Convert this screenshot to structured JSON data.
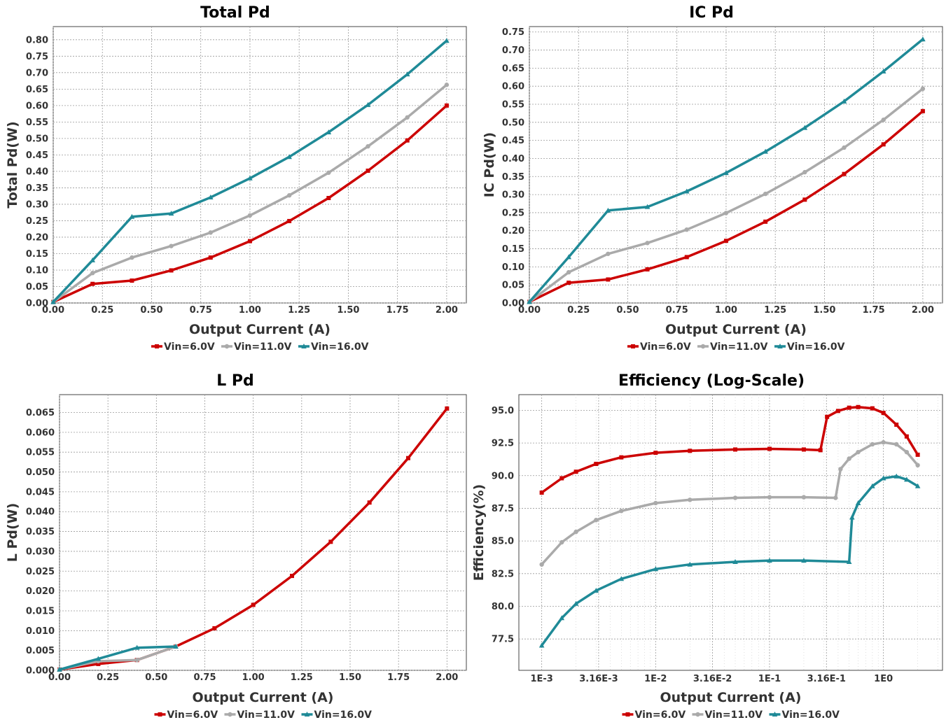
{
  "series_colors": {
    "vin6": "#cc0000",
    "vin11": "#aaaaaa",
    "vin16": "#1f8a97"
  },
  "chart_data": [
    {
      "type": "line",
      "title": "Total Pd",
      "xlabel": "Output Current (A)",
      "ylabel": "Total Pd(W)",
      "xlim": [
        0,
        2.1
      ],
      "ylim": [
        0,
        0.84
      ],
      "xticks": [
        "0.00",
        "0.25",
        "0.50",
        "0.75",
        "1.00",
        "1.25",
        "1.50",
        "1.75",
        "2.00"
      ],
      "yticks": [
        "0.00",
        "0.05",
        "0.10",
        "0.15",
        "0.20",
        "0.25",
        "0.30",
        "0.35",
        "0.40",
        "0.45",
        "0.50",
        "0.55",
        "0.60",
        "0.65",
        "0.70",
        "0.75",
        "0.80"
      ],
      "grid": true,
      "legend_position": "bottom",
      "series": [
        {
          "name": "Vin=6.0V",
          "x": [
            0,
            0.2,
            0.4,
            0.6,
            0.8,
            1.0,
            1.2,
            1.4,
            1.6,
            1.8,
            2.0
          ],
          "y": [
            0.003,
            0.058,
            0.068,
            0.099,
            0.138,
            0.188,
            0.249,
            0.319,
            0.402,
            0.494,
            0.6
          ]
        },
        {
          "name": "Vin=11.0V",
          "x": [
            0,
            0.2,
            0.4,
            0.6,
            0.8,
            1.0,
            1.2,
            1.4,
            1.6,
            1.8,
            2.0
          ],
          "y": [
            0.003,
            0.091,
            0.138,
            0.173,
            0.214,
            0.266,
            0.327,
            0.396,
            0.476,
            0.564,
            0.663
          ]
        },
        {
          "name": "Vin=16.0V",
          "x": [
            0,
            0.2,
            0.4,
            0.6,
            0.8,
            1.0,
            1.2,
            1.4,
            1.6,
            1.8,
            2.0
          ],
          "y": [
            0.003,
            0.13,
            0.262,
            0.272,
            0.321,
            0.379,
            0.444,
            0.519,
            0.602,
            0.695,
            0.797
          ]
        }
      ]
    },
    {
      "type": "line",
      "title": "IC Pd",
      "xlabel": "Output Current (A)",
      "ylabel": "IC Pd(W)",
      "xlim": [
        0,
        2.1
      ],
      "ylim": [
        0,
        0.765
      ],
      "xticks": [
        "0.00",
        "0.25",
        "0.50",
        "0.75",
        "1.00",
        "1.25",
        "1.50",
        "1.75",
        "2.00"
      ],
      "yticks": [
        "0.00",
        "0.05",
        "0.10",
        "0.15",
        "0.20",
        "0.25",
        "0.30",
        "0.35",
        "0.40",
        "0.45",
        "0.50",
        "0.55",
        "0.60",
        "0.65",
        "0.70",
        "0.75"
      ],
      "grid": true,
      "legend_position": "bottom",
      "series": [
        {
          "name": "Vin=6.0V",
          "x": [
            0,
            0.2,
            0.4,
            0.6,
            0.8,
            1.0,
            1.2,
            1.4,
            1.6,
            1.8,
            2.0
          ],
          "y": [
            0.003,
            0.056,
            0.065,
            0.093,
            0.127,
            0.172,
            0.225,
            0.286,
            0.357,
            0.439,
            0.531
          ]
        },
        {
          "name": "Vin=11.0V",
          "x": [
            0,
            0.2,
            0.4,
            0.6,
            0.8,
            1.0,
            1.2,
            1.4,
            1.6,
            1.8,
            2.0
          ],
          "y": [
            0.003,
            0.085,
            0.136,
            0.166,
            0.203,
            0.249,
            0.302,
            0.362,
            0.43,
            0.507,
            0.593
          ]
        },
        {
          "name": "Vin=16.0V",
          "x": [
            0,
            0.2,
            0.4,
            0.6,
            0.8,
            1.0,
            1.2,
            1.4,
            1.6,
            1.8,
            2.0
          ],
          "y": [
            0.003,
            0.127,
            0.256,
            0.266,
            0.309,
            0.36,
            0.419,
            0.485,
            0.558,
            0.641,
            0.73
          ]
        }
      ]
    },
    {
      "type": "line",
      "title": "L Pd",
      "xlabel": "Output Current (A)",
      "ylabel": "L Pd(W)",
      "xlim": [
        0,
        2.1
      ],
      "ylim": [
        0,
        0.0695
      ],
      "xticks": [
        "0.00",
        "0.25",
        "0.50",
        "0.75",
        "1.00",
        "1.25",
        "1.50",
        "1.75",
        "2.00"
      ],
      "yticks": [
        "0.000",
        "0.005",
        "0.010",
        "0.015",
        "0.020",
        "0.025",
        "0.030",
        "0.035",
        "0.040",
        "0.045",
        "0.050",
        "0.055",
        "0.060",
        "0.065"
      ],
      "grid": true,
      "legend_position": "bottom",
      "series": [
        {
          "name": "Vin=6.0V",
          "x": [
            0,
            0.2,
            0.4,
            0.6,
            0.8,
            1.0,
            1.2,
            1.4,
            1.6,
            1.8,
            2.0
          ],
          "y": [
            0.0002,
            0.0016,
            0.0026,
            0.006,
            0.0106,
            0.0165,
            0.0238,
            0.0324,
            0.0423,
            0.0535,
            0.066
          ]
        },
        {
          "name": "Vin=11.0V",
          "x": [
            0,
            0.2,
            0.4,
            0.6
          ],
          "y": [
            0.0002,
            0.0023,
            0.0026,
            0.006
          ]
        },
        {
          "name": "Vin=16.0V",
          "x": [
            0,
            0.2,
            0.4,
            0.6
          ],
          "y": [
            0.0002,
            0.0029,
            0.0057,
            0.006
          ]
        }
      ]
    },
    {
      "type": "line",
      "title": "Efficiency (Log-Scale)",
      "xlabel": "Output Current (A)",
      "ylabel": "Efficiency(%)",
      "xscale": "log",
      "xlim": [
        0.00063,
        3.3
      ],
      "ylim": [
        75.1,
        96.2
      ],
      "xticks": [
        "1E-3",
        "3.16E-3",
        "1E-2",
        "3.16E-2",
        "1E-1",
        "3.16E-1",
        "1E0"
      ],
      "xtick_values": [
        0.001,
        0.00316,
        0.01,
        0.0316,
        0.1,
        0.316,
        1.0
      ],
      "yticks": [
        "77.5",
        "80.0",
        "82.5",
        "85.0",
        "87.5",
        "90.0",
        "92.5",
        "95.0"
      ],
      "grid": true,
      "legend_position": "bottom",
      "series": [
        {
          "name": "Vin=6.0V",
          "x": [
            0.001,
            0.0015,
            0.002,
            0.003,
            0.005,
            0.01,
            0.02,
            0.05,
            0.1,
            0.2,
            0.28,
            0.32,
            0.4,
            0.5,
            0.6,
            0.8,
            1.0,
            1.3,
            1.6,
            2.0
          ],
          "y": [
            88.7,
            89.8,
            90.3,
            90.9,
            91.4,
            91.75,
            91.9,
            92.0,
            92.05,
            92.0,
            91.95,
            94.5,
            94.95,
            95.2,
            95.25,
            95.15,
            94.8,
            93.9,
            93.0,
            91.6
          ]
        },
        {
          "name": "Vin=11.0V",
          "x": [
            0.001,
            0.0015,
            0.002,
            0.003,
            0.005,
            0.01,
            0.02,
            0.05,
            0.1,
            0.2,
            0.38,
            0.42,
            0.5,
            0.6,
            0.8,
            1.0,
            1.3,
            1.6,
            2.0
          ],
          "y": [
            83.2,
            84.9,
            85.7,
            86.6,
            87.3,
            87.9,
            88.15,
            88.3,
            88.35,
            88.35,
            88.3,
            90.5,
            91.3,
            91.8,
            92.4,
            92.55,
            92.4,
            91.8,
            90.8
          ]
        },
        {
          "name": "Vin=16.0V",
          "x": [
            0.001,
            0.0015,
            0.002,
            0.003,
            0.005,
            0.01,
            0.02,
            0.05,
            0.1,
            0.2,
            0.5,
            0.53,
            0.6,
            0.8,
            1.0,
            1.3,
            1.6,
            2.0
          ],
          "y": [
            77.0,
            79.1,
            80.2,
            81.2,
            82.1,
            82.85,
            83.2,
            83.4,
            83.5,
            83.5,
            83.4,
            86.8,
            87.9,
            89.2,
            89.8,
            89.95,
            89.7,
            89.2
          ]
        }
      ]
    }
  ]
}
